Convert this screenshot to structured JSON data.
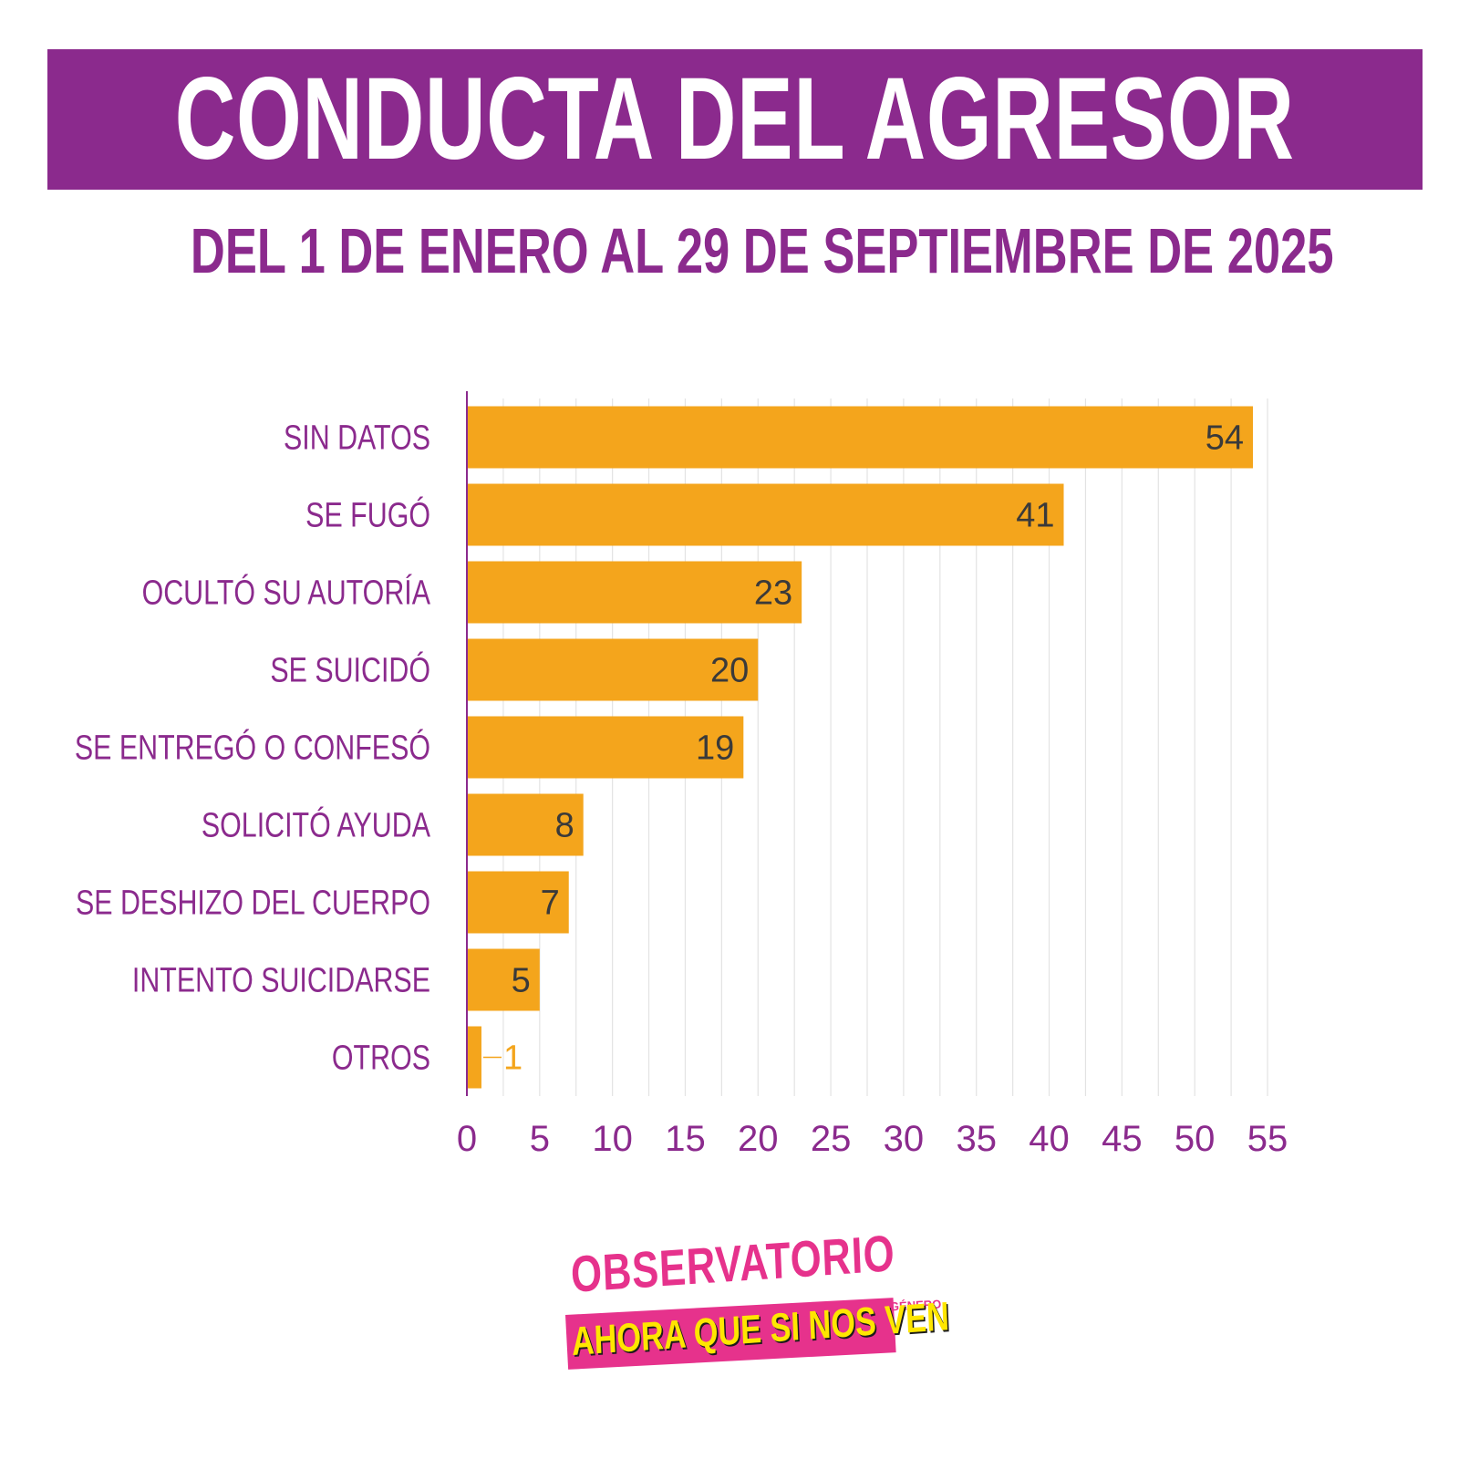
{
  "header": {
    "title": "CONDUCTA DEL AGRESOR",
    "subtitle": "DEL 1 DE ENERO AL 29 DE SEPTIEMBRE DE 2025"
  },
  "colors": {
    "primary": "#8b2a8d",
    "bar": "#f4a51c",
    "grid": "#e3e3e3",
    "value_label": "#3a3a3a",
    "logo_pink": "#e6328c",
    "logo_yellow": "#ffe600"
  },
  "chart_data": {
    "type": "bar",
    "orientation": "horizontal",
    "title": "CONDUCTA DEL AGRESOR",
    "subtitle": "DEL 1 DE ENERO AL 29 DE SEPTIEMBRE DE 2025",
    "categories": [
      "SIN DATOS",
      "SE FUGÓ",
      "OCULTÓ SU AUTORÍA",
      "SE SUICIDÓ",
      "SE ENTREGÓ O CONFESÓ",
      "SOLICITÓ AYUDA",
      "SE DESHIZO DEL CUERPO",
      "INTENTO SUICIDARSE",
      "OTROS"
    ],
    "values": [
      54,
      41,
      23,
      20,
      19,
      8,
      7,
      5,
      1
    ],
    "xlim": [
      0,
      55
    ],
    "xticks": [
      0,
      5,
      10,
      15,
      20,
      25,
      30,
      35,
      40,
      45,
      50,
      55
    ],
    "xlabel": "",
    "ylabel": "",
    "grid": true,
    "data_labels": true
  },
  "logo": {
    "line1": "OBSERVATORIO",
    "small": "DE LAS VIOLENCIAS DE GÉNERO",
    "line2": "AHORA QUE SI NOS VEN"
  }
}
